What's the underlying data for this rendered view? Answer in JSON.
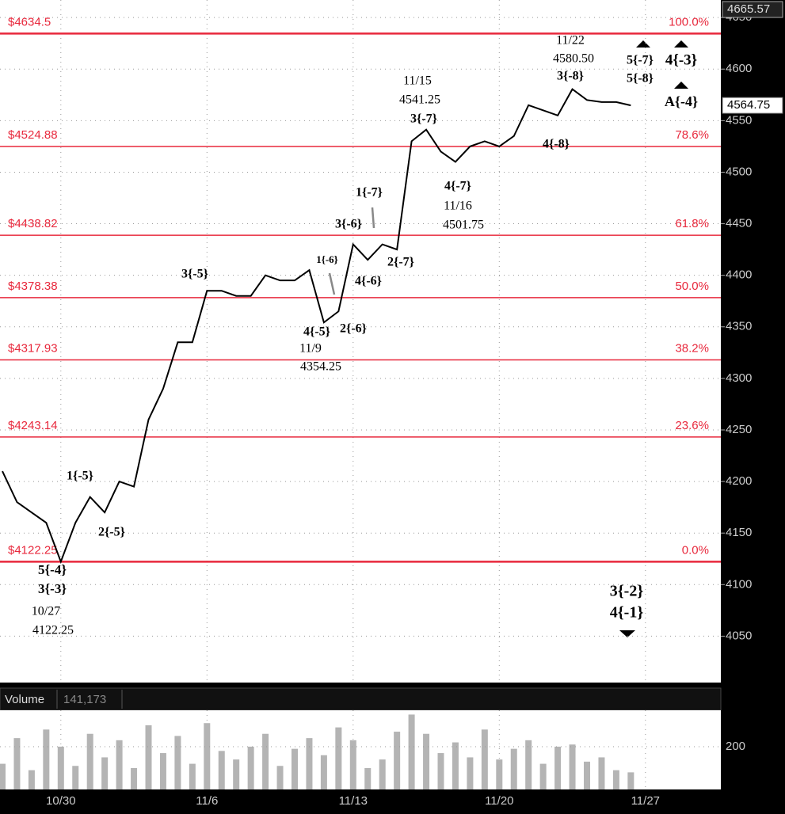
{
  "chart_data": [
    {
      "type": "line",
      "color": "#000000",
      "categories": [
        null,
        null,
        null,
        null,
        "10/30",
        null,
        null,
        null,
        null,
        null,
        null,
        null,
        null,
        null,
        "11/6",
        null,
        null,
        null,
        null,
        null,
        null,
        null,
        null,
        null,
        "11/13",
        null,
        null,
        null,
        null,
        null,
        null,
        null,
        null,
        null,
        "11/20",
        null,
        null,
        null,
        null,
        null,
        null,
        null,
        null,
        null,
        "11/27"
      ],
      "values": [
        4210,
        4180,
        4170,
        4160,
        4122.25,
        4160,
        4185,
        4170,
        4200,
        4195,
        4260,
        4290,
        4335,
        4335,
        4385,
        4385,
        4380,
        4380,
        4400,
        4395,
        4395,
        4405,
        4354.25,
        4365,
        4430,
        4415,
        4430,
        4425,
        4530,
        4541.25,
        4520,
        4510,
        4525,
        4530,
        4525,
        4535,
        4565,
        4560,
        4555,
        4580.5,
        4570,
        4568,
        4568,
        4564.75,
        null
      ],
      "ylim": [
        4005,
        4667
      ],
      "yticks": [
        4050,
        4100,
        4150,
        4200,
        4250,
        4300,
        4350,
        4400,
        4450,
        4500,
        4550,
        4600,
        4650
      ],
      "grid": true,
      "levels": [
        {
          "value": 4634.5,
          "label": "$4634.5",
          "pct": "100.0%"
        },
        {
          "value": 4524.88,
          "label": "$4524.88",
          "pct": "78.6%"
        },
        {
          "value": 4438.82,
          "label": "$4438.82",
          "pct": "61.8%"
        },
        {
          "value": 4378.38,
          "label": "$4378.38",
          "pct": "50.0%"
        },
        {
          "value": 4317.93,
          "label": "$4317.93",
          "pct": "38.2%"
        },
        {
          "value": 4243.14,
          "label": "$4243.14",
          "pct": "23.6%"
        },
        {
          "value": 4122.25,
          "label": "$4122.25",
          "pct": "0.0%"
        }
      ],
      "level_color": "#e8283c",
      "high_price": 4665.57,
      "last_price": 4564.75,
      "annotations": [
        "11/22",
        "4580.50",
        "3{-8}",
        "5{-7}",
        "5{-8}",
        "4{-3}",
        "A{-4}",
        "11/15",
        "4541.25",
        "3{-7}",
        "4{-8}",
        "4{-7}",
        "11/16",
        "4501.75",
        "1{-7}",
        "3{-6}",
        "1{-6}",
        "2{-7}",
        "3{-5}",
        "4{-6}",
        "4{-5}",
        "2{-6}",
        "11/9",
        "4354.25",
        "1{-5}",
        "2{-5}",
        "5{-4}",
        "3{-3}",
        "10/27",
        "4122.25",
        "3{-2}",
        "4{-1}"
      ]
    },
    {
      "type": "bar",
      "title": "Volume",
      "last": {
        "value": 141173,
        "label": "141,173"
      },
      "color": "#b4b4b4",
      "values": [
        120,
        240,
        90,
        280,
        200,
        110,
        260,
        150,
        230,
        100,
        300,
        170,
        250,
        120,
        310,
        180,
        140,
        200,
        260,
        110,
        190,
        240,
        160,
        290,
        230,
        100,
        140,
        270,
        350,
        260,
        170,
        220,
        150,
        280,
        140,
        190,
        230,
        120,
        200,
        210,
        130,
        150,
        90,
        80,
        null
      ],
      "ylim": [
        0,
        370
      ],
      "yticks": [
        200
      ]
    }
  ]
}
